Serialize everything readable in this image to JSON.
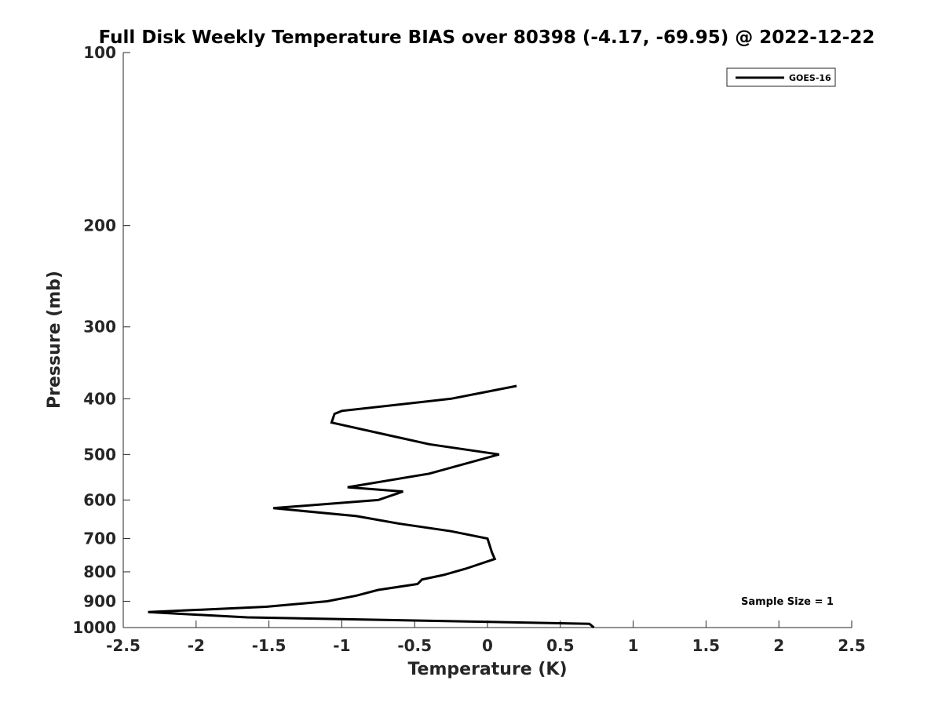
{
  "chart_data": {
    "type": "line",
    "title": "Full Disk Weekly Temperature BIAS over 80398 (-4.17, -69.95) @ 2022-12-22",
    "xlabel": "Temperature (K)",
    "ylabel": "Pressure (mb)",
    "xlim": [
      -2.5,
      2.5
    ],
    "ylim": [
      1000,
      100
    ],
    "yscale": "log",
    "xticks": [
      -2.5,
      -2,
      -1.5,
      -1,
      -0.5,
      0,
      0.5,
      1,
      1.5,
      2,
      2.5
    ],
    "xtick_labels": [
      "-2.5",
      "-2",
      "-1.5",
      "-1",
      "-0.5",
      "0",
      "0.5",
      "1",
      "1.5",
      "2",
      "2.5"
    ],
    "yticks": [
      100,
      200,
      300,
      400,
      500,
      600,
      700,
      800,
      900,
      1000
    ],
    "ytick_labels": [
      "100",
      "200",
      "300",
      "400",
      "500",
      "600",
      "700",
      "800",
      "900",
      "1000"
    ],
    "legend": {
      "location": "top-right",
      "entries": [
        "GOES-16"
      ]
    },
    "annotation": "Sample Size = 1",
    "line_color": "#000000",
    "series": [
      {
        "name": "GOES-16",
        "points": [
          {
            "x": 0.2,
            "p": 380
          },
          {
            "x": -0.25,
            "p": 400
          },
          {
            "x": -1.0,
            "p": 420
          },
          {
            "x": -1.05,
            "p": 425
          },
          {
            "x": -1.07,
            "p": 440
          },
          {
            "x": -0.4,
            "p": 480
          },
          {
            "x": 0.08,
            "p": 500
          },
          {
            "x": -0.4,
            "p": 540
          },
          {
            "x": -0.96,
            "p": 570
          },
          {
            "x": -0.58,
            "p": 580
          },
          {
            "x": -0.75,
            "p": 600
          },
          {
            "x": -1.47,
            "p": 620
          },
          {
            "x": -0.9,
            "p": 640
          },
          {
            "x": -0.6,
            "p": 660
          },
          {
            "x": -0.25,
            "p": 680
          },
          {
            "x": 0.0,
            "p": 700
          },
          {
            "x": 0.03,
            "p": 740
          },
          {
            "x": 0.05,
            "p": 760
          },
          {
            "x": -0.15,
            "p": 790
          },
          {
            "x": -0.3,
            "p": 810
          },
          {
            "x": -0.45,
            "p": 825
          },
          {
            "x": -0.48,
            "p": 840
          },
          {
            "x": -0.75,
            "p": 860
          },
          {
            "x": -0.9,
            "p": 880
          },
          {
            "x": -1.1,
            "p": 900
          },
          {
            "x": -1.52,
            "p": 920
          },
          {
            "x": -2.33,
            "p": 940
          },
          {
            "x": -1.65,
            "p": 960
          },
          {
            "x": 0.7,
            "p": 985
          },
          {
            "x": 0.73,
            "p": 1000
          }
        ]
      }
    ]
  }
}
